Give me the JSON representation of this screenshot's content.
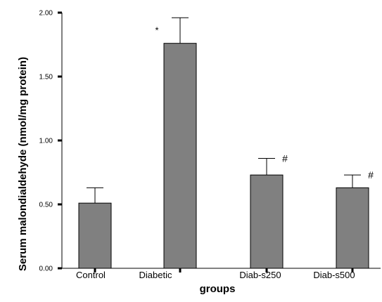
{
  "chart_data": {
    "type": "bar",
    "title": "",
    "xlabel": "groups",
    "ylabel": "Serum malondialdehyde (nmol/mg protein)",
    "categories": [
      "Control",
      "Diabetic",
      "Diab-s250",
      "Diab-s500"
    ],
    "values": [
      0.51,
      1.76,
      0.73,
      0.63
    ],
    "error_upper": [
      0.63,
      1.96,
      0.86,
      0.73
    ],
    "annotations": [
      "",
      "*",
      "#",
      "#"
    ],
    "ylim": [
      0.0,
      2.0
    ],
    "yticks": [
      "0.00",
      "0.50",
      "1.00",
      "1.50",
      "2.00"
    ],
    "ytick_values": [
      0.0,
      0.5,
      1.0,
      1.5,
      2.0
    ],
    "grid": false,
    "bar_color": "#808080",
    "axis_color": "#000000"
  }
}
